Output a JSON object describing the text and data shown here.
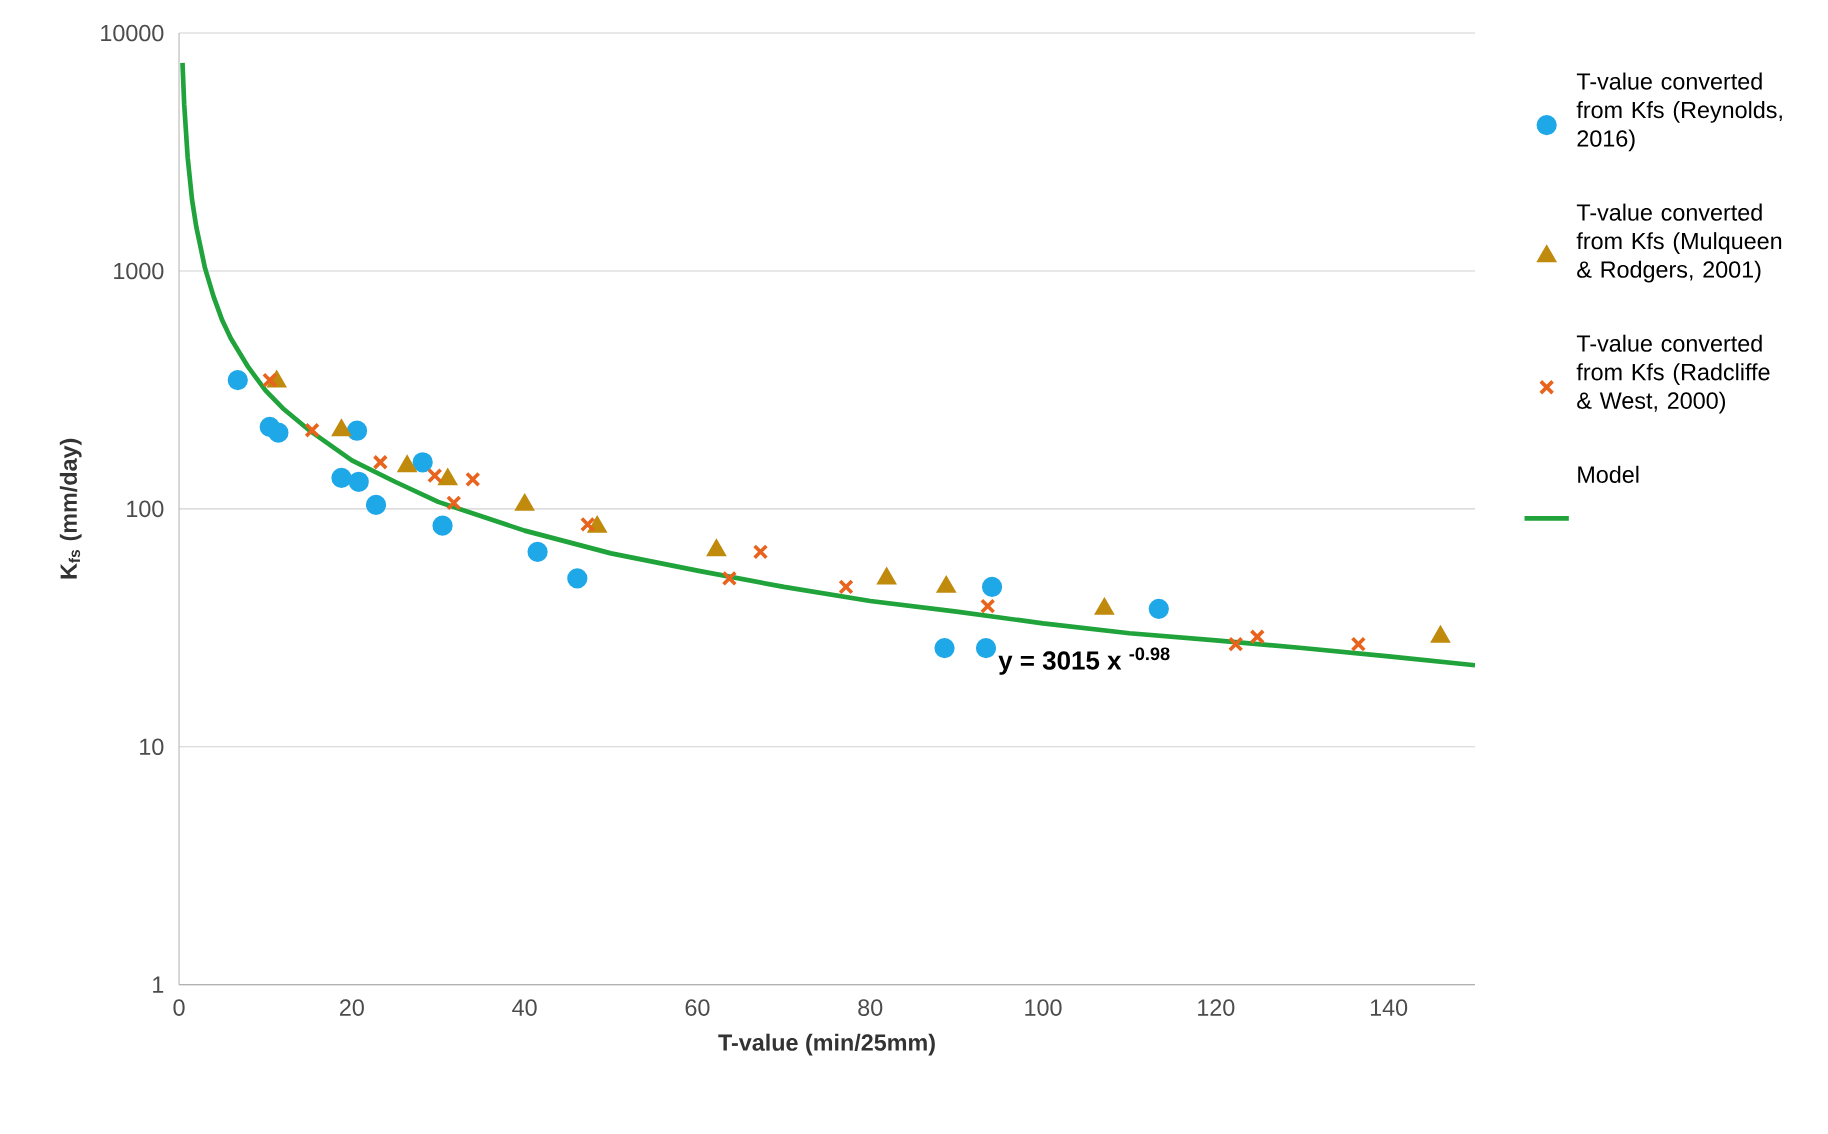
{
  "chart_data": {
    "type": "scatter",
    "xlabel": "T-value (min/25mm)",
    "ylabel": "K$_{fs}$ (mm/day)",
    "xlim": [
      0,
      150
    ],
    "xticks": [
      0,
      20,
      40,
      60,
      80,
      100,
      120,
      140
    ],
    "ylim": [
      1,
      10000
    ],
    "yticks": [
      1,
      10,
      100,
      1000,
      10000
    ],
    "log": "y",
    "grid": "y",
    "legend": "right",
    "annotations": [
      "y = 3015 x $^{-0.98}$"
    ],
    "series": [
      {
        "name": "T-value converted from Kfs (Reynolds, 2016)",
        "color": "#1fa8e8",
        "marker": "circle",
        "x": [
          6.8,
          10.5,
          11.5,
          20.6,
          18.8,
          20.8,
          22.8,
          28.2,
          30.5,
          41.5,
          46.1,
          88.6,
          93.4,
          94.1,
          113.4
        ],
        "values": [
          348,
          221,
          209,
          213,
          135,
          130,
          104,
          157,
          85,
          66,
          51,
          26,
          26,
          47,
          38
        ]
      },
      {
        "name": "T-value converted from Kfs (Mulqueen & Rodgers, 2001)",
        "color": "#c08a0c",
        "marker": "triangle",
        "x": [
          11.3,
          18.8,
          26.4,
          31.1,
          40.0,
          48.4,
          62.2,
          81.9,
          88.8,
          107.1,
          146.0
        ],
        "values": [
          343,
          214,
          151,
          133,
          104,
          84,
          67,
          51,
          47,
          38,
          29
        ]
      },
      {
        "name": "T-value converted from Kfs (Radcliffe & West, 2000)",
        "color": "#e8641e",
        "marker": "cross",
        "x": [
          10.5,
          15.4,
          23.3,
          29.6,
          34.0,
          31.8,
          47.3,
          63.7,
          67.3,
          77.2,
          93.6,
          122.3,
          124.8,
          136.5
        ],
        "values": [
          348,
          214,
          157,
          138,
          133,
          106,
          86,
          51,
          66,
          47,
          39,
          27,
          29,
          27
        ]
      },
      {
        "name": "Model",
        "type": "line",
        "color": "#1fa33a",
        "marker": "none",
        "line_style": "solid",
        "x": [
          0.4,
          0.6,
          1,
          1.5,
          2,
          3,
          4,
          5,
          6,
          8,
          10,
          12,
          15,
          20,
          25,
          30,
          40,
          50,
          60,
          70,
          80,
          90,
          100,
          110,
          120,
          130,
          140,
          150
        ],
        "values": [
          7500,
          5000,
          3000,
          2000,
          1530,
          1030,
          780,
          620,
          520,
          395,
          315,
          265,
          215,
          160,
          130,
          107,
          81,
          65,
          55,
          47,
          41,
          37,
          33,
          30,
          28,
          26,
          24,
          22
        ]
      }
    ]
  }
}
